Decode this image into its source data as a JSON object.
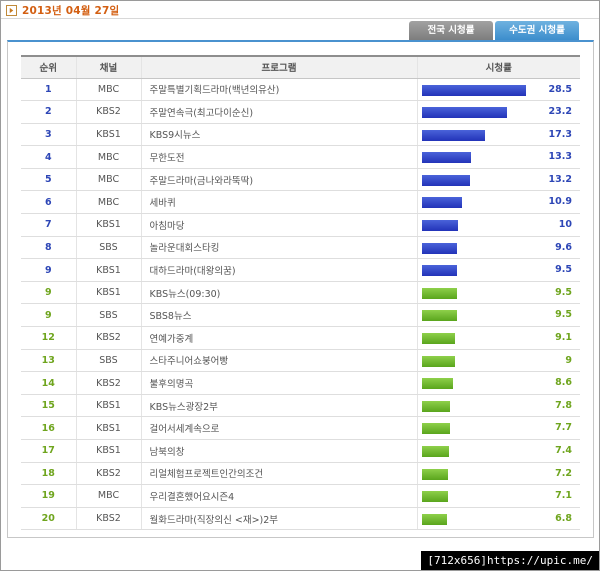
{
  "header": {
    "date": "2013년 04월 27일",
    "icon": "arrow-right-icon"
  },
  "tabs": [
    {
      "label": "전국 시청률",
      "active": false
    },
    {
      "label": "수도권 시청률",
      "active": true
    }
  ],
  "table": {
    "columns": [
      "순위",
      "채널",
      "프로그램",
      "시청률"
    ],
    "max_rating": 28.5,
    "rows": [
      {
        "rank": "1",
        "channel": "MBC",
        "program": "주말특별기획드라마(백년의유산)",
        "rating": "28.5",
        "color": "blue"
      },
      {
        "rank": "2",
        "channel": "KBS2",
        "program": "주말연속극(최고다이순신)",
        "rating": "23.2",
        "color": "blue"
      },
      {
        "rank": "3",
        "channel": "KBS1",
        "program": "KBS9시뉴스",
        "rating": "17.3",
        "color": "blue"
      },
      {
        "rank": "4",
        "channel": "MBC",
        "program": "무한도전",
        "rating": "13.3",
        "color": "blue"
      },
      {
        "rank": "5",
        "channel": "MBC",
        "program": "주말드라마(금나와라뚝딱)",
        "rating": "13.2",
        "color": "blue"
      },
      {
        "rank": "6",
        "channel": "MBC",
        "program": "세바퀴",
        "rating": "10.9",
        "color": "blue"
      },
      {
        "rank": "7",
        "channel": "KBS1",
        "program": "아침마당",
        "rating": "10",
        "color": "blue"
      },
      {
        "rank": "8",
        "channel": "SBS",
        "program": "놀라운대회스타킹",
        "rating": "9.6",
        "color": "blue"
      },
      {
        "rank": "9",
        "channel": "KBS1",
        "program": "대하드라마(대왕의꿈)",
        "rating": "9.5",
        "color": "blue"
      },
      {
        "rank": "9",
        "channel": "KBS1",
        "program": "KBS뉴스(09:30)",
        "rating": "9.5",
        "color": "green"
      },
      {
        "rank": "9",
        "channel": "SBS",
        "program": "SBS8뉴스",
        "rating": "9.5",
        "color": "green"
      },
      {
        "rank": "12",
        "channel": "KBS2",
        "program": "연예가중계",
        "rating": "9.1",
        "color": "green"
      },
      {
        "rank": "13",
        "channel": "SBS",
        "program": "스타주니어쇼붕어빵",
        "rating": "9",
        "color": "green"
      },
      {
        "rank": "14",
        "channel": "KBS2",
        "program": "불후의명곡",
        "rating": "8.6",
        "color": "green"
      },
      {
        "rank": "15",
        "channel": "KBS1",
        "program": "KBS뉴스광장2부",
        "rating": "7.8",
        "color": "green"
      },
      {
        "rank": "16",
        "channel": "KBS1",
        "program": "걸어서세계속으로",
        "rating": "7.7",
        "color": "green"
      },
      {
        "rank": "17",
        "channel": "KBS1",
        "program": "남북의창",
        "rating": "7.4",
        "color": "green"
      },
      {
        "rank": "18",
        "channel": "KBS2",
        "program": "리얼체험프로젝트인간의조건",
        "rating": "7.2",
        "color": "green"
      },
      {
        "rank": "19",
        "channel": "MBC",
        "program": "우리결혼했어요시즌4",
        "rating": "7.1",
        "color": "green"
      },
      {
        "rank": "20",
        "channel": "KBS2",
        "program": "월화드라마(직장의신 <재>)2부",
        "rating": "6.8",
        "color": "green"
      }
    ]
  },
  "watermark": "[712x656]https://upic.me/",
  "colors": {
    "date_text": "#d35f12",
    "blue_bar": "#2d46b6",
    "green_bar": "#6fa51e",
    "active_tab": "#3c8dcc",
    "inactive_tab": "#7d7d7d"
  }
}
